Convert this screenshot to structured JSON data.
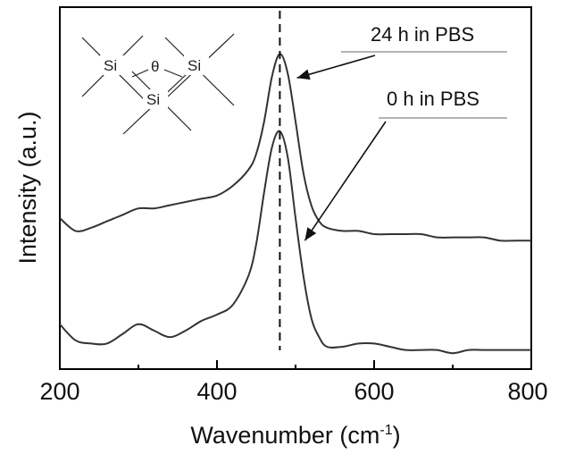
{
  "chart_data": {
    "type": "line",
    "title": "",
    "xlabel": "Wavenumber (cm",
    "xlabel_sup": "-1",
    "xlabel_tail": ")",
    "ylabel": "Intensity (a.u.)",
    "xlim": [
      200,
      800
    ],
    "ylim": [
      0,
      1
    ],
    "xticks": [
      "200",
      "400",
      "600",
      "800"
    ],
    "peak_marker_x": 480,
    "y_tick_labels": false,
    "series": [
      {
        "name": "24 h in PBS",
        "x": [
          200,
          220,
          240,
          260,
          280,
          300,
          320,
          340,
          360,
          380,
          400,
          420,
          440,
          450,
          460,
          470,
          480,
          490,
          500,
          510,
          520,
          530,
          540,
          560,
          580,
          600,
          620,
          640,
          660,
          680,
          700,
          720,
          740,
          760,
          780,
          800
        ],
        "y": [
          0.4,
          0.36,
          0.37,
          0.39,
          0.41,
          0.43,
          0.43,
          0.44,
          0.45,
          0.46,
          0.47,
          0.5,
          0.55,
          0.6,
          0.7,
          0.84,
          0.91,
          0.85,
          0.7,
          0.54,
          0.44,
          0.39,
          0.37,
          0.36,
          0.36,
          0.35,
          0.35,
          0.35,
          0.35,
          0.34,
          0.34,
          0.34,
          0.34,
          0.33,
          0.33,
          0.33
        ]
      },
      {
        "name": "0 h in PBS",
        "x": [
          200,
          220,
          240,
          260,
          280,
          300,
          320,
          340,
          360,
          380,
          400,
          420,
          440,
          450,
          460,
          470,
          480,
          490,
          500,
          510,
          520,
          530,
          540,
          560,
          580,
          600,
          620,
          640,
          660,
          680,
          700,
          720,
          740,
          760,
          780,
          800
        ],
        "y": [
          0.07,
          0.02,
          0.01,
          0.01,
          0.04,
          0.07,
          0.05,
          0.03,
          0.05,
          0.08,
          0.1,
          0.13,
          0.22,
          0.32,
          0.48,
          0.62,
          0.67,
          0.59,
          0.4,
          0.22,
          0.09,
          0.03,
          0.0,
          0.0,
          0.01,
          0.01,
          0.0,
          -0.01,
          -0.01,
          -0.01,
          -0.02,
          -0.01,
          -0.01,
          -0.01,
          -0.01,
          -0.01
        ]
      }
    ],
    "annotations": [
      {
        "text": "24 h in PBS",
        "points_to_series": 0
      },
      {
        "text": "0 h in PBS",
        "points_to_series": 1
      }
    ],
    "inset": {
      "atom_labels": [
        "Si",
        "Si",
        "Si"
      ],
      "angle_symbol": "θ"
    }
  }
}
